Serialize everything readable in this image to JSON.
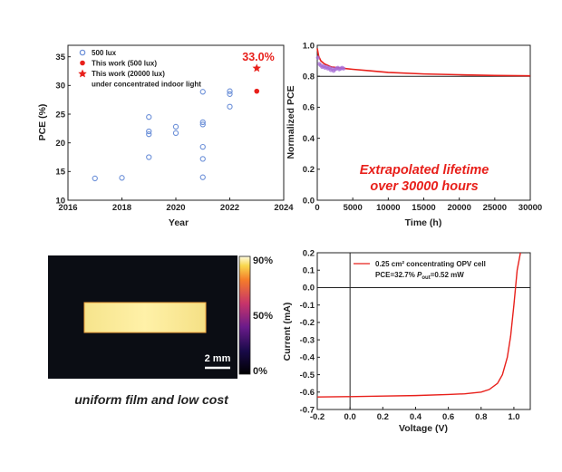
{
  "chart_data": [
    {
      "type": "scatter",
      "xlabel": "Year",
      "ylabel": "PCE (%)",
      "xlim": [
        2016,
        2024
      ],
      "ylim": [
        10,
        37
      ],
      "xticks": [
        "2016",
        "2018",
        "2020",
        "2022",
        "2024"
      ],
      "yticks": [
        "10",
        "15",
        "20",
        "25",
        "30",
        "35"
      ],
      "series": [
        {
          "name": "500 lux",
          "marker": "open-circle",
          "color": "#6b8fd8",
          "points": [
            [
              2017,
              13.8
            ],
            [
              2018,
              13.9
            ],
            [
              2019,
              17.5
            ],
            [
              2019,
              21.5
            ],
            [
              2019,
              22.0
            ],
            [
              2019,
              24.5
            ],
            [
              2020,
              21.7
            ],
            [
              2020,
              22.8
            ],
            [
              2021,
              14.0
            ],
            [
              2021,
              17.2
            ],
            [
              2021,
              19.3
            ],
            [
              2021,
              23.2
            ],
            [
              2021,
              23.6
            ],
            [
              2021,
              28.9
            ],
            [
              2022,
              26.3
            ],
            [
              2022,
              28.5
            ],
            [
              2022,
              29.0
            ]
          ]
        },
        {
          "name": "This work (500 lux)",
          "marker": "filled-circle",
          "color": "#e8201b",
          "points": [
            [
              2023,
              29.0
            ]
          ]
        },
        {
          "name": "This work (20000 lux)",
          "marker": "star",
          "color": "#e8201b",
          "points": [
            [
              2023,
              33.0
            ]
          ]
        }
      ],
      "legend_extra": "under concentrated indoor light",
      "annotation": "33.0%"
    },
    {
      "type": "line",
      "xlabel": "Time (h)",
      "ylabel": "Normalized PCE",
      "xlim": [
        0,
        30000
      ],
      "ylim": [
        0.0,
        1.0
      ],
      "xticks": [
        "0",
        "5000",
        "10000",
        "15000",
        "20000",
        "25000",
        "30000"
      ],
      "yticks": [
        "0.0",
        "0.2",
        "0.4",
        "0.6",
        "0.8",
        "1.0"
      ],
      "series": [
        {
          "color": "#e8201b",
          "x": [
            0,
            200,
            500,
            1000,
            2000,
            3000,
            4000,
            5000,
            7500,
            10000,
            15000,
            20000,
            25000,
            30000
          ],
          "y": [
            0.98,
            0.93,
            0.9,
            0.88,
            0.86,
            0.855,
            0.85,
            0.845,
            0.835,
            0.825,
            0.815,
            0.81,
            0.805,
            0.803
          ]
        },
        {
          "color": "#a56bd6",
          "marker": "circle",
          "x": [
            100,
            300,
            500,
            700,
            900,
            1100,
            1300,
            1500,
            1700,
            1900,
            2100,
            2300,
            2500,
            2700,
            2900,
            3100,
            3300,
            3500,
            3700
          ],
          "y": [
            0.92,
            0.88,
            0.87,
            0.86,
            0.865,
            0.855,
            0.86,
            0.85,
            0.855,
            0.84,
            0.85,
            0.835,
            0.845,
            0.85,
            0.855,
            0.845,
            0.85,
            0.855,
            0.85
          ]
        }
      ],
      "reference_line_y": 0.8,
      "annotation": [
        "Extrapolated lifetime",
        "over 30000 hours"
      ]
    },
    {
      "type": "heatmap",
      "colorbar_labels": [
        "90%",
        "50%",
        "0%"
      ],
      "scale_bar_label": "2 mm",
      "caption": "uniform film and low cost"
    },
    {
      "type": "line",
      "xlabel": "Voltage (V)",
      "ylabel": "Current (mA)",
      "xlim": [
        -0.2,
        1.1
      ],
      "ylim": [
        -0.7,
        0.2
      ],
      "xticks": [
        "-0.2",
        "0.0",
        "0.2",
        "0.4",
        "0.6",
        "0.8",
        "1.0"
      ],
      "yticks": [
        "0.2",
        "0.1",
        "0.0",
        "-0.1",
        "-0.2",
        "-0.3",
        "-0.4",
        "-0.5",
        "-0.6",
        "-0.7"
      ],
      "series": [
        {
          "name": "0.25 cm² concentrating OPV cell",
          "color": "#e8201b",
          "x": [
            -0.2,
            0.0,
            0.2,
            0.4,
            0.6,
            0.7,
            0.8,
            0.85,
            0.9,
            0.93,
            0.96,
            0.98,
            1.0,
            1.02,
            1.04
          ],
          "y": [
            -0.628,
            -0.626,
            -0.623,
            -0.62,
            -0.614,
            -0.61,
            -0.6,
            -0.585,
            -0.55,
            -0.5,
            -0.4,
            -0.28,
            -0.1,
            0.1,
            0.2
          ]
        }
      ],
      "legend_line2": "PCE=32.7% P_out=0.52 mW"
    }
  ]
}
